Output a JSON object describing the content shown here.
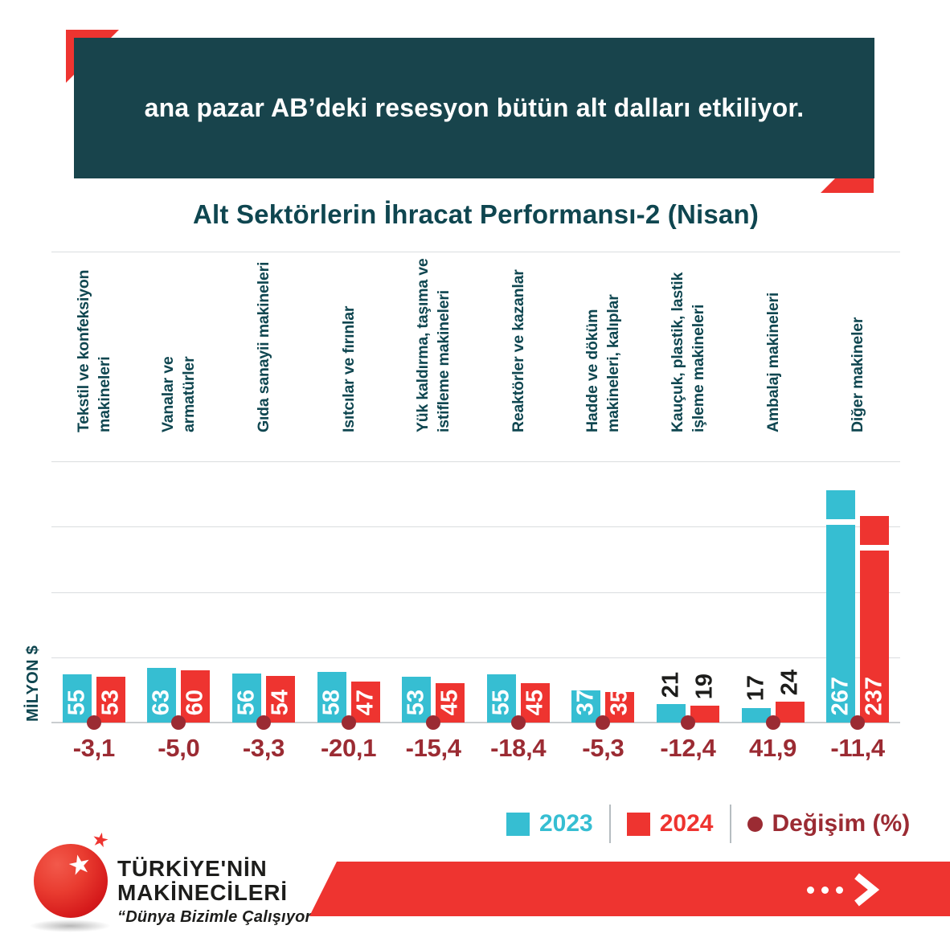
{
  "banner": {
    "text": "ana pazar AB’deki resesyon bütün alt dalları etkiliyor."
  },
  "chart_data": {
    "type": "bar",
    "title": "Alt Sektörlerin İhracat Performansı-2 (Nisan)",
    "ylabel": "MİLYON $",
    "categories": [
      "Tekstil ve konfeksiyon\nmakineleri",
      "Vanalar ve\narmatürler",
      "Gıda sanayii makineleri",
      "Isıtcılar ve fırınlar",
      "Yük kaldırma, taşıma ve\nistifleme makineleri",
      "Reaktörler ve kazanlar",
      "Hadde ve döküm\nmakineleri, kalıplar",
      "Kauçuk, plastik, lastik\nişleme makineleri",
      "Ambalaj makineleri",
      "Diğer makineler"
    ],
    "series": [
      {
        "name": "2023",
        "color": "#36bed2",
        "values": [
          55,
          63,
          56,
          58,
          53,
          55,
          37,
          21,
          17,
          267
        ]
      },
      {
        "name": "2024",
        "color": "#ee3430",
        "values": [
          53,
          60,
          54,
          47,
          45,
          45,
          35,
          19,
          24,
          237
        ]
      }
    ],
    "change_series": {
      "name": "Değişim (%)",
      "color": "#9b2b33",
      "values": [
        "-3,1",
        "-5,0",
        "-3,3",
        "-20,1",
        "-15,4",
        "-18,4",
        "-5,3",
        "-12,4",
        "41,9",
        "-11,4"
      ]
    },
    "ylim": [
      0,
      300
    ],
    "gridlines": [
      75,
      150,
      225,
      300
    ],
    "grid": true,
    "legend_position": "bottom",
    "axis_break_category_index": 9,
    "value_label_inside_threshold": 30
  },
  "legend": {
    "items": [
      {
        "label": "2023",
        "color": "#36bed2",
        "shape": "square"
      },
      {
        "label": "2024",
        "color": "#ee3430",
        "shape": "square"
      },
      {
        "label": "Değişim (%)",
        "color": "#9b2b33",
        "shape": "circle"
      }
    ]
  },
  "footer": {
    "brand_line1": "TÜRKİYE'NİN",
    "brand_line2": "MAKİNECİLERİ",
    "slogan": "“Dünya Bizimle Çalışıyor”",
    "star_glyph": "★"
  },
  "colors": {
    "banner_bg": "#18444c",
    "accent_red": "#ee3430",
    "teal": "#36bed2",
    "maroon": "#9b2b33",
    "title_text": "#0f4650",
    "category_text": "#0f4650",
    "gridline": "#dadddf",
    "baseline": "#c9cdd0",
    "dark_text": "#1d1d1b",
    "legend_divider": "#b6bdc1"
  }
}
